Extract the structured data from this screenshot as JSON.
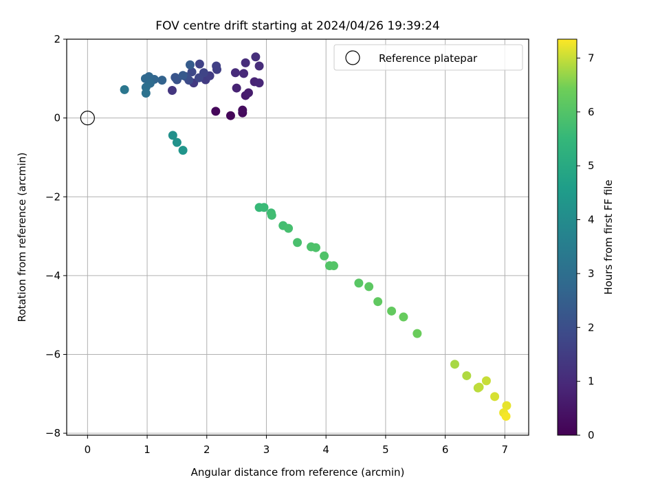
{
  "chart_data": {
    "type": "scatter",
    "title": "FOV centre drift starting at 2024/04/26 19:39:24",
    "xlabel": "Angular distance from reference (arcmin)",
    "ylabel": "Rotation from reference (arcmin)",
    "xlim": [
      -0.35,
      7.4
    ],
    "ylim": [
      -8.05,
      2.0
    ],
    "xticks": [
      0,
      1,
      2,
      3,
      4,
      5,
      6,
      7
    ],
    "xtick_labels": [
      "0",
      "1",
      "2",
      "3",
      "4",
      "5",
      "6",
      "7"
    ],
    "yticks": [
      2,
      0,
      -2,
      -4,
      -6,
      -8
    ],
    "ytick_labels": [
      "2",
      "0",
      "−2",
      "−4",
      "−6",
      "−8"
    ],
    "grid": true,
    "legend": {
      "position": "top-right",
      "entries": [
        "Reference platepar"
      ]
    },
    "reference_point": {
      "x": 0,
      "y": 0
    },
    "colorbar": {
      "label": "Hours from first FF file",
      "colormap": "viridis",
      "range": [
        0,
        7.35
      ],
      "ticks": [
        0,
        1,
        2,
        3,
        4,
        5,
        6,
        7
      ],
      "tick_labels": [
        "0",
        "1",
        "2",
        "3",
        "4",
        "5",
        "6",
        "7"
      ]
    },
    "points": [
      {
        "x": 2.4,
        "y": 0.06,
        "c": 0.1
      },
      {
        "x": 2.15,
        "y": 0.17,
        "c": 0.15
      },
      {
        "x": 2.6,
        "y": 0.13,
        "c": 0.2
      },
      {
        "x": 2.6,
        "y": 0.2,
        "c": 0.25
      },
      {
        "x": 2.65,
        "y": 0.57,
        "c": 0.6
      },
      {
        "x": 2.7,
        "y": 0.64,
        "c": 0.65
      },
      {
        "x": 2.5,
        "y": 0.76,
        "c": 0.8
      },
      {
        "x": 2.8,
        "y": 0.92,
        "c": 0.85
      },
      {
        "x": 2.88,
        "y": 0.89,
        "c": 0.9
      },
      {
        "x": 2.62,
        "y": 1.13,
        "c": 0.95
      },
      {
        "x": 2.48,
        "y": 1.15,
        "c": 1.0
      },
      {
        "x": 2.88,
        "y": 1.32,
        "c": 1.05
      },
      {
        "x": 2.65,
        "y": 1.4,
        "c": 1.05
      },
      {
        "x": 2.82,
        "y": 1.55,
        "c": 1.1
      },
      {
        "x": 1.42,
        "y": 0.7,
        "c": 1.3
      },
      {
        "x": 1.78,
        "y": 0.89,
        "c": 1.4
      },
      {
        "x": 1.98,
        "y": 0.97,
        "c": 1.45
      },
      {
        "x": 2.05,
        "y": 1.07,
        "c": 1.5
      },
      {
        "x": 2.17,
        "y": 1.23,
        "c": 1.55
      },
      {
        "x": 2.16,
        "y": 1.32,
        "c": 1.6
      },
      {
        "x": 1.88,
        "y": 1.37,
        "c": 1.65
      },
      {
        "x": 1.95,
        "y": 1.15,
        "c": 1.7
      },
      {
        "x": 1.87,
        "y": 1.02,
        "c": 1.75
      },
      {
        "x": 1.75,
        "y": 1.17,
        "c": 1.8
      },
      {
        "x": 1.7,
        "y": 0.96,
        "c": 1.9
      },
      {
        "x": 1.65,
        "y": 1.05,
        "c": 2.0
      },
      {
        "x": 1.5,
        "y": 0.97,
        "c": 2.1
      },
      {
        "x": 1.47,
        "y": 1.03,
        "c": 2.2
      },
      {
        "x": 1.6,
        "y": 1.08,
        "c": 2.3
      },
      {
        "x": 1.72,
        "y": 1.35,
        "c": 2.4
      },
      {
        "x": 1.25,
        "y": 0.96,
        "c": 2.6
      },
      {
        "x": 1.12,
        "y": 0.98,
        "c": 2.7
      },
      {
        "x": 1.03,
        "y": 1.05,
        "c": 2.75
      },
      {
        "x": 0.97,
        "y": 1.0,
        "c": 2.8
      },
      {
        "x": 1.05,
        "y": 0.88,
        "c": 2.9
      },
      {
        "x": 0.98,
        "y": 0.78,
        "c": 3.0
      },
      {
        "x": 0.98,
        "y": 0.63,
        "c": 3.1
      },
      {
        "x": 0.62,
        "y": 0.72,
        "c": 3.25
      },
      {
        "x": 1.43,
        "y": -0.44,
        "c": 4.15
      },
      {
        "x": 1.5,
        "y": -0.62,
        "c": 4.2
      },
      {
        "x": 1.6,
        "y": -0.82,
        "c": 4.3
      },
      {
        "x": 2.88,
        "y": -2.27,
        "c": 5.55
      },
      {
        "x": 2.96,
        "y": -2.27,
        "c": 5.6
      },
      {
        "x": 3.08,
        "y": -2.41,
        "c": 5.65
      },
      {
        "x": 3.09,
        "y": -2.47,
        "c": 5.7
      },
      {
        "x": 3.28,
        "y": -2.73,
        "c": 5.75
      },
      {
        "x": 3.37,
        "y": -2.8,
        "c": 5.8
      },
      {
        "x": 3.52,
        "y": -3.16,
        "c": 5.85
      },
      {
        "x": 3.75,
        "y": -3.27,
        "c": 5.9
      },
      {
        "x": 3.83,
        "y": -3.29,
        "c": 5.92
      },
      {
        "x": 3.97,
        "y": -3.5,
        "c": 5.95
      },
      {
        "x": 4.06,
        "y": -3.75,
        "c": 6.0
      },
      {
        "x": 4.13,
        "y": -3.75,
        "c": 6.02
      },
      {
        "x": 4.55,
        "y": -4.19,
        "c": 6.1
      },
      {
        "x": 4.72,
        "y": -4.28,
        "c": 6.15
      },
      {
        "x": 4.87,
        "y": -4.66,
        "c": 6.2
      },
      {
        "x": 5.1,
        "y": -4.9,
        "c": 6.25
      },
      {
        "x": 5.3,
        "y": -5.05,
        "c": 6.3
      },
      {
        "x": 5.53,
        "y": -5.47,
        "c": 6.35
      },
      {
        "x": 6.16,
        "y": -6.25,
        "c": 6.8
      },
      {
        "x": 6.36,
        "y": -6.54,
        "c": 6.85
      },
      {
        "x": 6.55,
        "y": -6.85,
        "c": 6.9
      },
      {
        "x": 6.57,
        "y": -6.83,
        "c": 6.95
      },
      {
        "x": 6.69,
        "y": -6.67,
        "c": 7.0
      },
      {
        "x": 6.83,
        "y": -7.07,
        "c": 7.1
      },
      {
        "x": 7.03,
        "y": -7.3,
        "c": 7.2
      },
      {
        "x": 6.98,
        "y": -7.48,
        "c": 7.25
      },
      {
        "x": 7.02,
        "y": -7.57,
        "c": 7.3
      }
    ]
  }
}
